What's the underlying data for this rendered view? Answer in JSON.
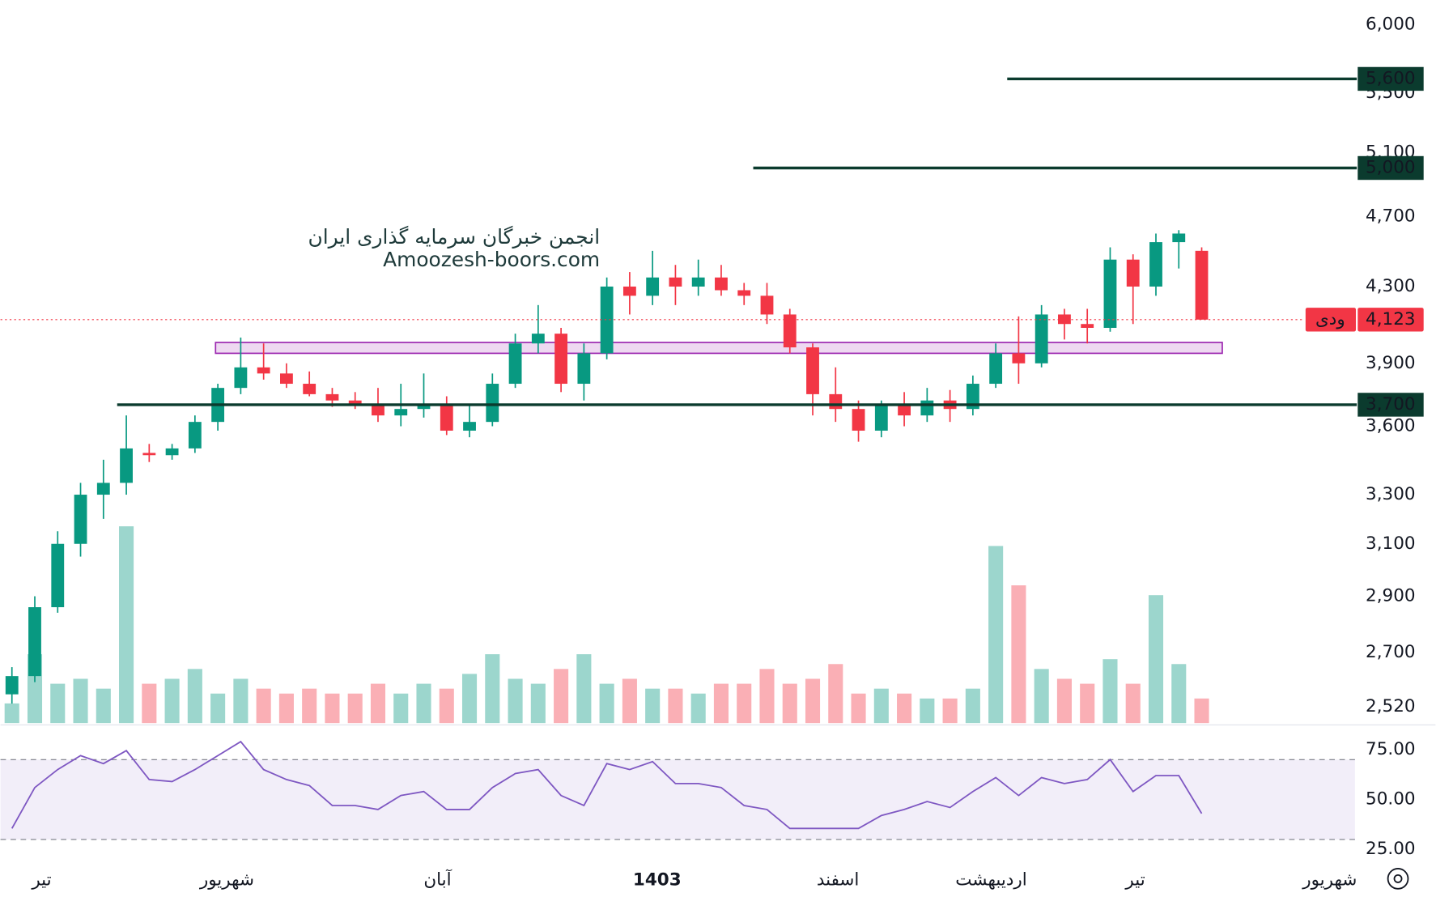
{
  "chart_data": {
    "type": "candlestick",
    "watermark_title": "انجمن خبرگان سرمایه گذاری ایران",
    "watermark_url": "Amoozesh-boors.com",
    "log_scale": true,
    "ylim": [
      2468,
      6191
    ],
    "yticks": [
      {
        "value": 6000,
        "label": "6,000"
      },
      {
        "value": 5500,
        "label": "5,500"
      },
      {
        "value": 5100,
        "label": "5,100"
      },
      {
        "value": 4700,
        "label": "4,700"
      },
      {
        "value": 4300,
        "label": "4,300"
      },
      {
        "value": 3900,
        "label": "3,900"
      },
      {
        "value": 3600,
        "label": "3,600"
      },
      {
        "value": 3300,
        "label": "3,300"
      },
      {
        "value": 3100,
        "label": "3,100"
      },
      {
        "value": 2900,
        "label": "2,900"
      },
      {
        "value": 2700,
        "label": "2,700"
      },
      {
        "value": 2520,
        "label": "2,520"
      }
    ],
    "xlim": [
      -0.5,
      58.7
    ],
    "xticks": [
      {
        "value": 1.3,
        "label": "تیر"
      },
      {
        "value": 9.4,
        "label": "شهریور"
      },
      {
        "value": 18.6,
        "label": "آبان"
      },
      {
        "value": 28.2,
        "label": "1403"
      },
      {
        "value": 36.1,
        "label": "اسفند"
      },
      {
        "value": 42.8,
        "label": "اردیبهشت"
      },
      {
        "value": 49.1,
        "label": "تیر"
      },
      {
        "value": 57.6,
        "label": "شهریور"
      }
    ],
    "up_color": "#089981",
    "down_color": "#f23645",
    "open": [
      2560,
      2620,
      2860,
      3100,
      3300,
      3350,
      3480,
      3470,
      3500,
      3620,
      3780,
      3880,
      3850,
      3800,
      3750,
      3720,
      3700,
      3650,
      3680,
      3700,
      3580,
      3620,
      3800,
      4000,
      4050,
      3800,
      3950,
      4300,
      4250,
      4350,
      4300,
      4350,
      4280,
      4250,
      4150,
      3980,
      3750,
      3680,
      3580,
      3700,
      3650,
      3720,
      3680,
      3800,
      3950,
      3900,
      4150,
      4100,
      4080,
      4450,
      4300,
      4550,
      4500
    ],
    "high": [
      2650,
      2900,
      3150,
      3350,
      3450,
      3650,
      3520,
      3520,
      3650,
      3800,
      4030,
      4000,
      3900,
      3860,
      3780,
      3760,
      3780,
      3800,
      3850,
      3740,
      3700,
      3850,
      4050,
      4200,
      4080,
      4000,
      4350,
      4380,
      4500,
      4420,
      4450,
      4420,
      4320,
      4320,
      4180,
      4000,
      3880,
      3720,
      3720,
      3760,
      3780,
      3770,
      3840,
      4000,
      4140,
      4200,
      4180,
      4180,
      4520,
      4480,
      4600,
      4620,
      4520
    ],
    "low": [
      2530,
      2600,
      2840,
      3050,
      3200,
      3300,
      3440,
      3450,
      3480,
      3580,
      3750,
      3820,
      3780,
      3740,
      3690,
      3680,
      3620,
      3600,
      3640,
      3560,
      3550,
      3600,
      3780,
      3950,
      3760,
      3720,
      3920,
      4150,
      4200,
      4200,
      4250,
      4250,
      4200,
      4100,
      3950,
      3650,
      3620,
      3530,
      3550,
      3600,
      3620,
      3620,
      3650,
      3780,
      3800,
      3880,
      4020,
      4000,
      4060,
      4100,
      4250,
      4400,
      4123
    ],
    "close": [
      2620,
      2860,
      3100,
      3300,
      3350,
      3500,
      3470,
      3500,
      3620,
      3780,
      3880,
      3850,
      3800,
      3750,
      3720,
      3700,
      3650,
      3680,
      3700,
      3580,
      3620,
      3800,
      4000,
      4050,
      3800,
      3950,
      4300,
      4250,
      4350,
      4300,
      4350,
      4280,
      4250,
      4150,
      3980,
      3750,
      3680,
      3580,
      3700,
      3650,
      3720,
      3680,
      3800,
      3950,
      3900,
      4150,
      4100,
      4080,
      4450,
      4300,
      4550,
      4600,
      4123
    ],
    "volume": [
      20,
      70,
      40,
      45,
      35,
      200,
      40,
      45,
      55,
      30,
      45,
      35,
      30,
      35,
      30,
      30,
      40,
      30,
      40,
      35,
      50,
      70,
      45,
      40,
      55,
      70,
      40,
      45,
      35,
      35,
      30,
      40,
      40,
      55,
      40,
      45,
      60,
      30,
      35,
      30,
      25,
      25,
      35,
      180,
      140,
      55,
      45,
      40,
      65,
      40,
      130,
      60,
      25
    ],
    "levels": [
      {
        "value": 5600,
        "label": "5,600",
        "from": 43.5
      },
      {
        "value": 5000,
        "label": "5,000",
        "from": 32.4
      },
      {
        "value": 3700,
        "label": "3,700",
        "from": 4.6
      }
    ],
    "price_line": {
      "value": 4123,
      "label": "4,123",
      "symbol": "ودی"
    },
    "zone": {
      "low": 3950,
      "high": 4005,
      "from": 8.9,
      "to": 52.9
    },
    "rsi": {
      "values": [
        35.5,
        56,
        65,
        72,
        68,
        74.5,
        60,
        59,
        65,
        72,
        79,
        65,
        60,
        57,
        47,
        47,
        45,
        52,
        54,
        45,
        45,
        56,
        63,
        65,
        52,
        47,
        68,
        65,
        69,
        58,
        58,
        56,
        47,
        45,
        35.5,
        35.5,
        35.5,
        35.5,
        42,
        45,
        49,
        46,
        54,
        61,
        52,
        61,
        58,
        60,
        70,
        54,
        62,
        62,
        43
      ],
      "ylim": [
        21.8,
        83.7
      ],
      "yticks": [
        {
          "value": 75,
          "label": "75.00"
        },
        {
          "value": 50,
          "label": "50.00"
        },
        {
          "value": 25,
          "label": "25.00"
        }
      ],
      "bands": [
        30,
        70
      ],
      "color": "#7e57c2"
    }
  }
}
